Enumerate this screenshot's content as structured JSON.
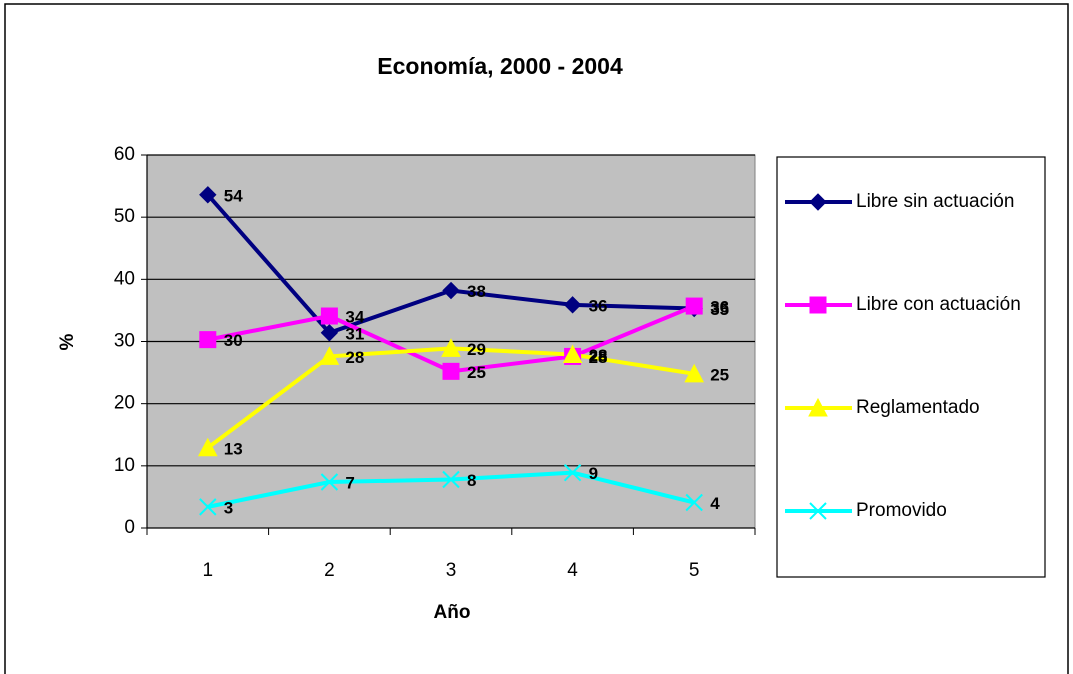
{
  "chart_data": {
    "type": "line",
    "title": "Economía, 2000 - 2004",
    "x_label": "Año",
    "y_label": "%",
    "categories": [
      "1",
      "2",
      "3",
      "4",
      "5"
    ],
    "series": [
      {
        "name": "Libre sin actuación",
        "color": "#000080",
        "marker": "diamond",
        "values": [
          53.6,
          31.4,
          38.2,
          35.9,
          35.3
        ],
        "value_labels": [
          "54",
          "31",
          "38",
          "36",
          "35"
        ]
      },
      {
        "name": "Libre con actuación",
        "color": "#ff00ff",
        "marker": "square",
        "values": [
          30.3,
          34.1,
          25.2,
          27.6,
          35.7
        ],
        "value_labels": [
          "30",
          "34",
          "25",
          "28",
          "36"
        ]
      },
      {
        "name": "Reglamentado",
        "color": "#ffff00",
        "marker": "triangle",
        "values": [
          12.9,
          27.6,
          28.9,
          27.9,
          24.8
        ],
        "value_labels": [
          "13",
          "28",
          "29",
          "28",
          "25"
        ]
      },
      {
        "name": "Promovido",
        "color": "#00ffff",
        "marker": "x",
        "values": [
          3.4,
          7.4,
          7.8,
          8.9,
          4.1
        ],
        "value_labels": [
          "3",
          "7",
          "8",
          "9",
          "4"
        ]
      }
    ],
    "ylim": [
      0,
      60
    ],
    "yticks": [
      0,
      10,
      20,
      30,
      40,
      50,
      60
    ],
    "grid": true,
    "plot_background": "#c0c0c0",
    "legend": "right"
  }
}
